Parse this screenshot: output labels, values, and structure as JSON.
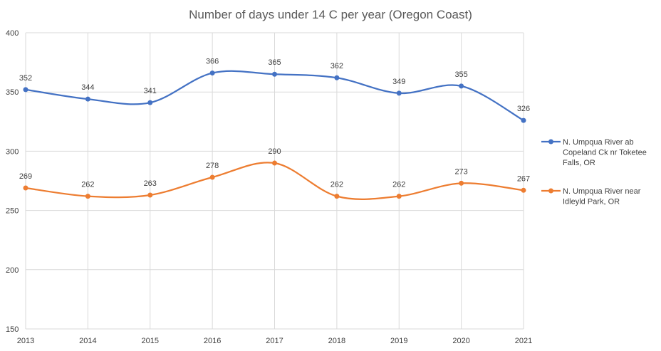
{
  "chart_data": {
    "type": "line",
    "title": "Number of days under 14 C per year (Oregon Coast)",
    "xlabel": "",
    "ylabel": "",
    "categories": [
      "2013",
      "2014",
      "2015",
      "2016",
      "2017",
      "2018",
      "2019",
      "2020",
      "2021"
    ],
    "ylim": [
      150,
      400
    ],
    "yticks": [
      150,
      200,
      250,
      300,
      350,
      400
    ],
    "grid": true,
    "smooth": true,
    "legend_position": "right",
    "series": [
      {
        "name": "N. Umpqua River ab Copeland Ck nr Toketee Falls, OR",
        "legend_lines": [
          "N. Umpqua River ab",
          "Copeland Ck nr Toketee",
          "Falls, OR"
        ],
        "color": "#4472C4",
        "values": [
          352,
          344,
          341,
          366,
          365,
          362,
          349,
          355,
          326
        ]
      },
      {
        "name": "N. Umpqua River near Idleyld Park, OR",
        "legend_lines": [
          "N. Umpqua River near",
          "Idleyld Park, OR"
        ],
        "color": "#ED7D31",
        "values": [
          269,
          262,
          263,
          278,
          290,
          262,
          262,
          273,
          267
        ]
      }
    ]
  }
}
